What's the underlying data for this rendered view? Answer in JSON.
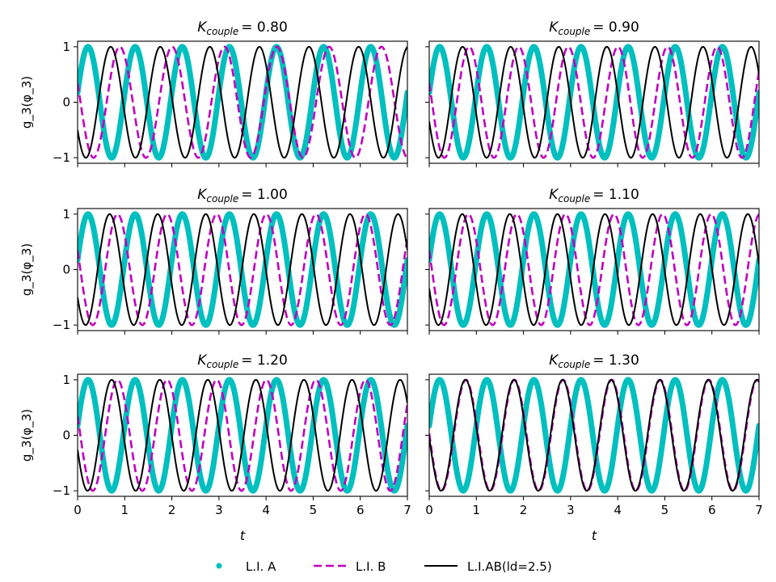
{
  "chart_data": {
    "type": "line",
    "layout": "3x2 grid, shared x-axis per column, shared y-axis per row",
    "xlabel": "t",
    "ylabel": "g_3(φ_3)",
    "xlim": [
      0,
      7
    ],
    "ylim": [
      -1.1,
      1.1
    ],
    "xticks": [
      0,
      1,
      2,
      3,
      4,
      5,
      6,
      7
    ],
    "yticks": [
      -1,
      0,
      1
    ],
    "legend": {
      "placement": "bottom-center",
      "entries": [
        {
          "name": "L.I. A",
          "color": "#00bfbf",
          "style": "thick dotted"
        },
        {
          "name": "L.I. B",
          "color": "#bf00bf",
          "style": "dashed"
        },
        {
          "name": "L.I.AB(ld=2.5)",
          "color": "#000000",
          "style": "solid"
        }
      ]
    },
    "panels": [
      {
        "title_prefix": "K",
        "title_sub": "couple",
        "title_value": "= 0.80",
        "series": [
          {
            "name": "L.I. A",
            "frequency": 1.0,
            "phase_deg": 10,
            "range": [
              0,
              7
            ]
          },
          {
            "name": "L.I. B",
            "frequency": 0.9,
            "phase_deg": 160,
            "range": [
              0,
              7
            ]
          },
          {
            "name": "L.I.AB(ld=2.5)",
            "frequency": 0.95,
            "phase_deg": 210,
            "range": [
              0,
              7
            ]
          }
        ]
      },
      {
        "title_prefix": "K",
        "title_sub": "couple",
        "title_value": "= 0.90",
        "series": [
          {
            "name": "L.I. A",
            "frequency": 1.0,
            "phase_deg": 10,
            "range": [
              0,
              7
            ]
          },
          {
            "name": "L.I. B",
            "frequency": 0.95,
            "phase_deg": 160,
            "range": [
              0,
              7
            ]
          },
          {
            "name": "L.I.AB(ld=2.5)",
            "frequency": 0.98,
            "phase_deg": 200,
            "range": [
              0,
              7
            ]
          }
        ]
      },
      {
        "title_prefix": "K",
        "title_sub": "couple",
        "title_value": "= 1.00",
        "series": [
          {
            "name": "L.I. A",
            "frequency": 1.0,
            "phase_deg": 10,
            "range": [
              0,
              7
            ]
          },
          {
            "name": "L.I. B",
            "frequency": 0.95,
            "phase_deg": 160,
            "range": [
              0,
              7
            ]
          },
          {
            "name": "L.I.AB(ld=2.5)",
            "frequency": 0.98,
            "phase_deg": 210,
            "range": [
              0,
              7
            ]
          }
        ]
      },
      {
        "title_prefix": "K",
        "title_sub": "couple",
        "title_value": "= 1.10",
        "series": [
          {
            "name": "L.I. A",
            "frequency": 1.0,
            "phase_deg": 10,
            "range": [
              0,
              7
            ]
          },
          {
            "name": "L.I. B",
            "frequency": 0.97,
            "phase_deg": 160,
            "range": [
              0,
              7
            ]
          },
          {
            "name": "L.I.AB(ld=2.5)",
            "frequency": 0.99,
            "phase_deg": 200,
            "range": [
              0,
              7
            ]
          }
        ]
      },
      {
        "title_prefix": "K",
        "title_sub": "couple",
        "title_value": "= 1.20",
        "series": [
          {
            "name": "L.I. A",
            "frequency": 1.0,
            "phase_deg": 10,
            "range": [
              0,
              7
            ]
          },
          {
            "name": "L.I. B",
            "frequency": 0.95,
            "phase_deg": 160,
            "range": [
              0,
              7
            ]
          },
          {
            "name": "L.I.AB(ld=2.5)",
            "frequency": 0.98,
            "phase_deg": 195,
            "range": [
              0,
              7
            ]
          }
        ]
      },
      {
        "title_prefix": "K",
        "title_sub": "couple",
        "title_value": "= 1.30",
        "series": [
          {
            "name": "L.I. A",
            "frequency": 1.0,
            "phase_deg": 10,
            "range": [
              0,
              7
            ]
          },
          {
            "name": "L.I. B",
            "frequency": 0.97,
            "phase_deg": 178,
            "range": [
              0,
              7
            ]
          },
          {
            "name": "L.I.AB(ld=2.5)",
            "frequency": 0.97,
            "phase_deg": 182,
            "range": [
              0,
              7
            ]
          }
        ]
      }
    ]
  }
}
